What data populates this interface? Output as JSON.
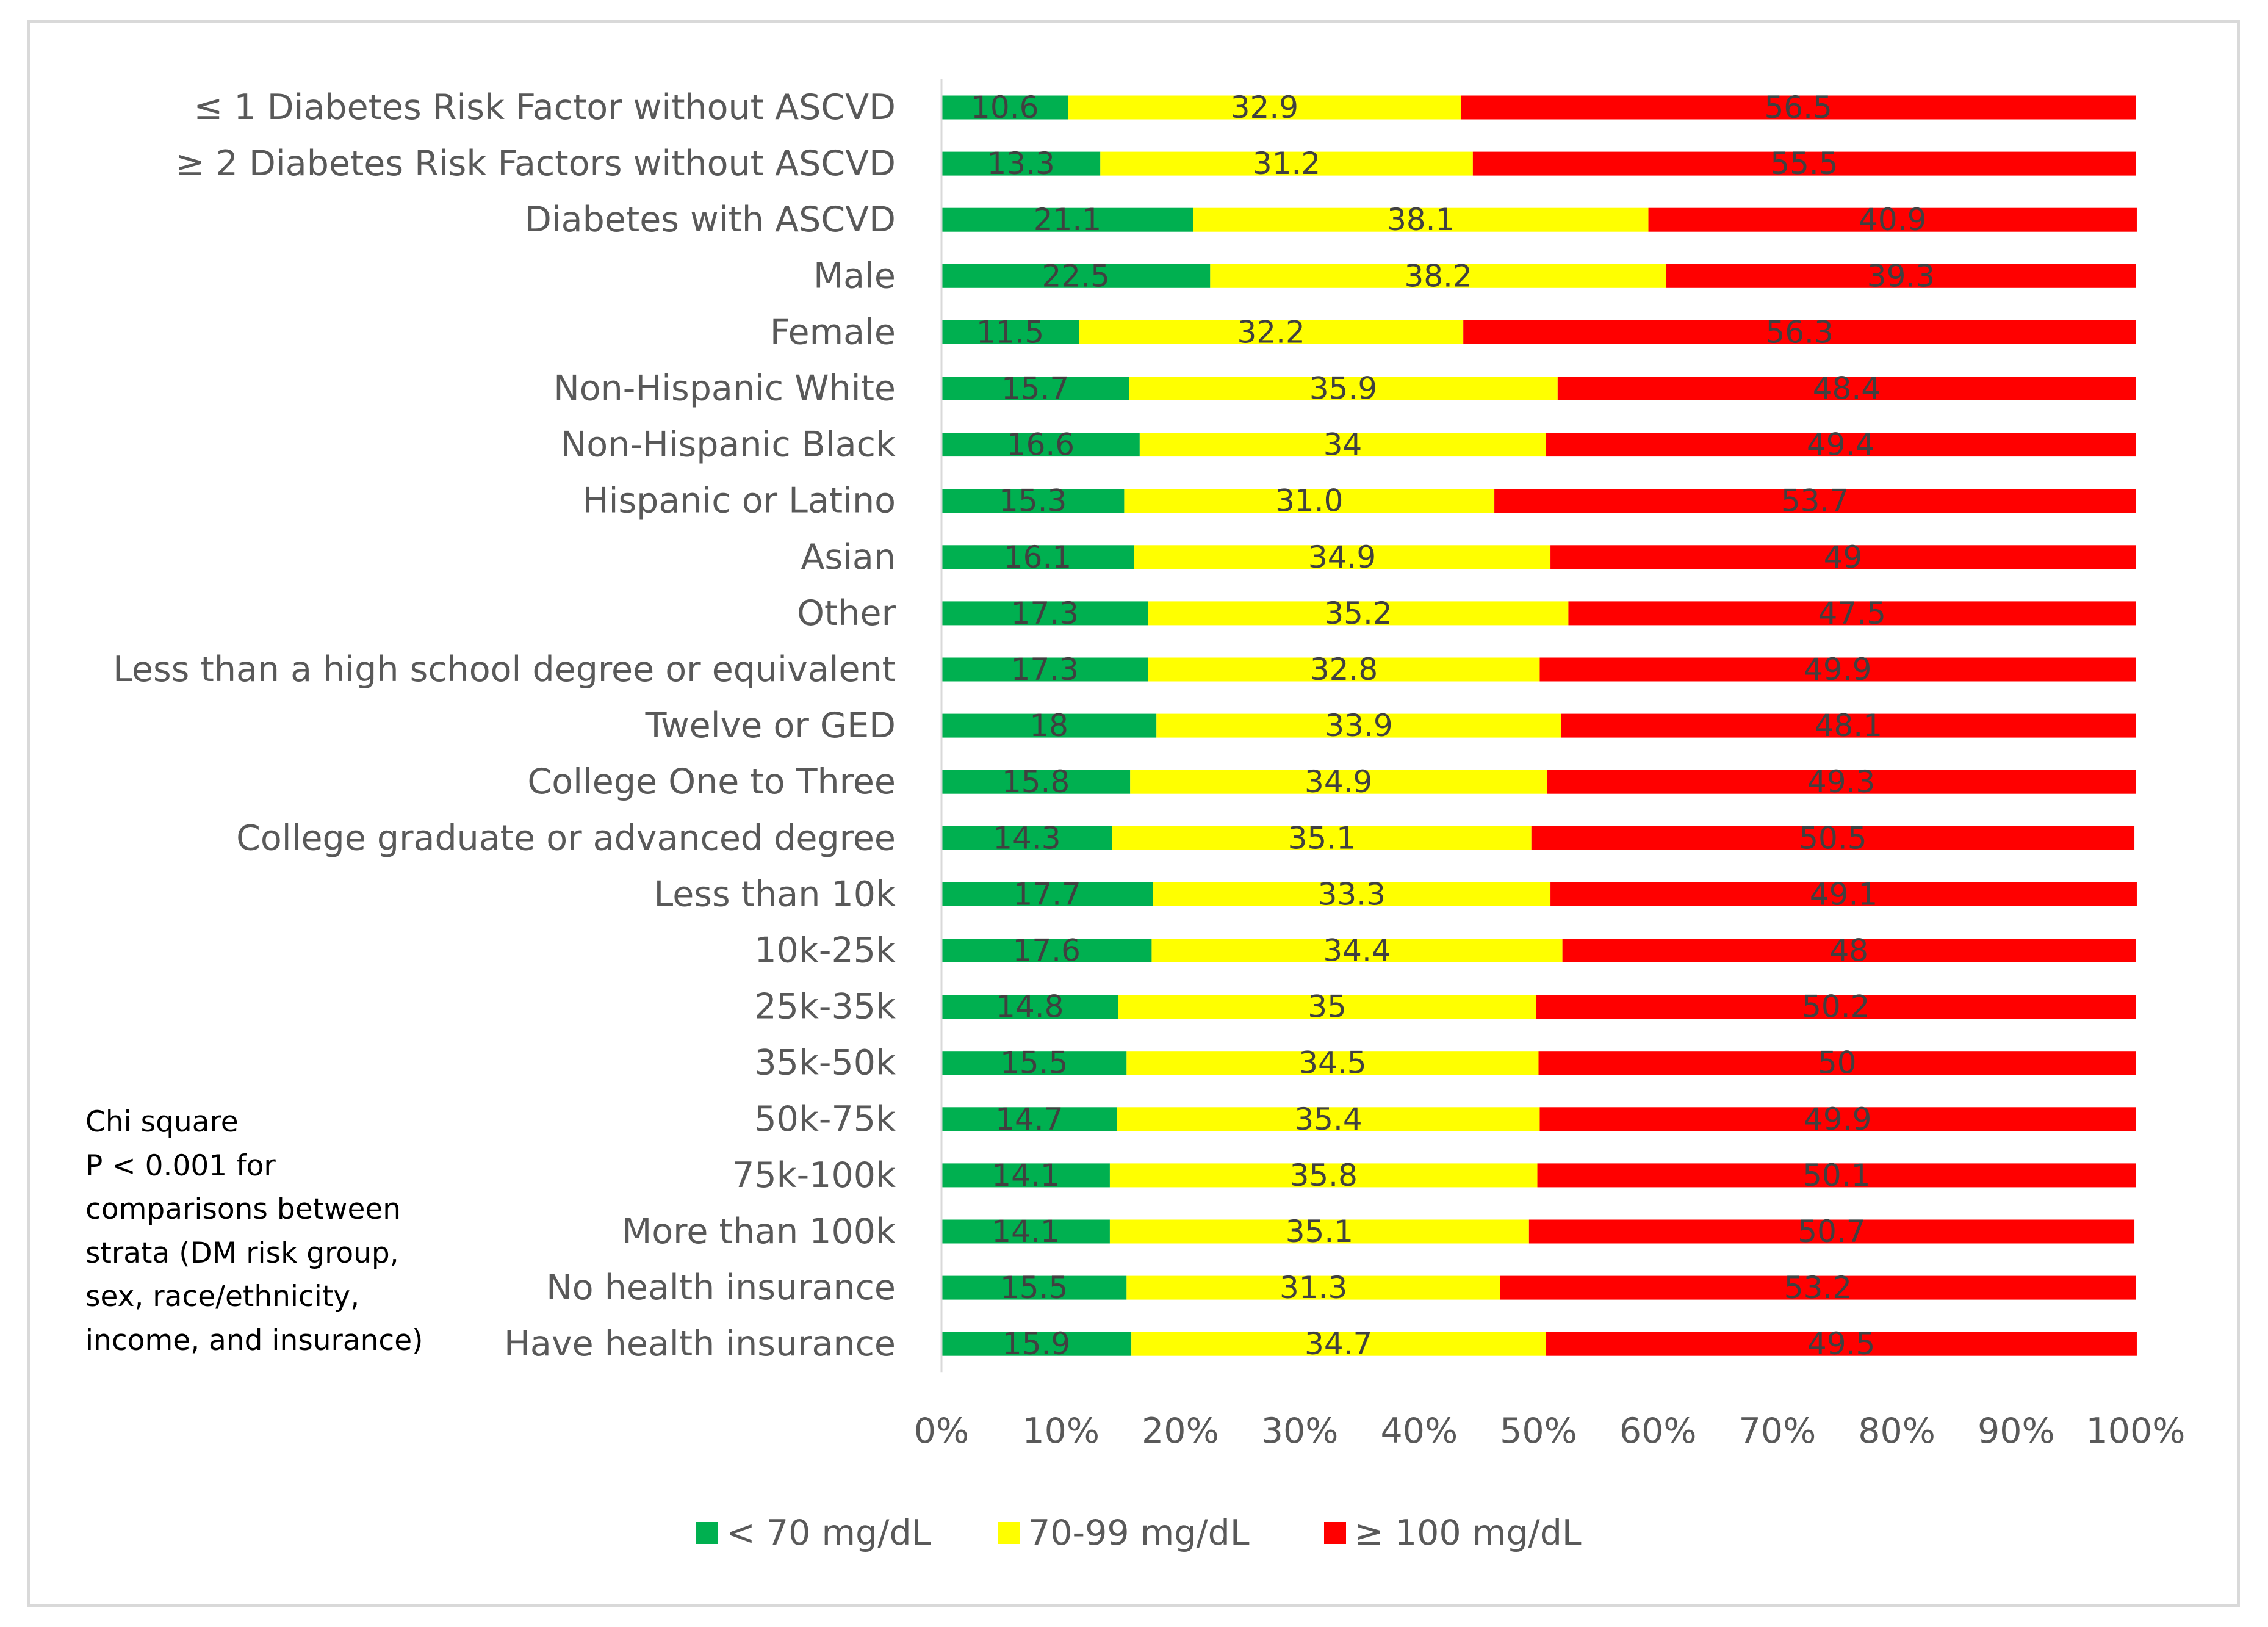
{
  "chart_data": {
    "type": "bar",
    "orientation": "horizontal",
    "stacked": "percent",
    "categories": [
      "≤ 1 Diabetes Risk Factor without ASCVD",
      "≥ 2 Diabetes Risk Factors without ASCVD",
      "Diabetes with ASCVD",
      "Male",
      "Female",
      "Non-Hispanic White",
      "Non-Hispanic Black",
      "Hispanic or Latino",
      "Asian",
      "Other",
      "Less than a high school degree or equivalent",
      "Twelve or GED",
      "College One to Three",
      "College graduate or advanced degree",
      "Less than 10k",
      "10k-25k",
      "25k-35k",
      "35k-50k",
      "50k-75k",
      "75k-100k",
      "More than 100k",
      "No health insurance",
      "Have health insurance"
    ],
    "series": [
      {
        "name": "< 70 mg/dL",
        "color": "#00b050",
        "values": [
          10.6,
          13.3,
          21.1,
          22.5,
          11.5,
          15.7,
          16.6,
          15.3,
          16.1,
          17.3,
          17.3,
          18,
          15.8,
          14.3,
          17.7,
          17.6,
          14.8,
          15.5,
          14.7,
          14.1,
          14.1,
          15.5,
          15.9
        ],
        "labels": [
          "10.6",
          "13.3",
          "21.1",
          "22.5",
          "11.5",
          "15.7",
          "16.6",
          "15.3",
          "16.1",
          "17.3",
          "17.3",
          "18",
          "15.8",
          "14.3",
          "17.7",
          "17.6",
          "14.8",
          "15.5",
          "14.7",
          "14.1",
          "14.1",
          "15.5",
          "15.9"
        ]
      },
      {
        "name": "70-99 mg/dL",
        "color": "#ffff00",
        "values": [
          32.9,
          31.2,
          38.1,
          38.2,
          32.2,
          35.9,
          34,
          31.0,
          34.9,
          35.2,
          32.8,
          33.9,
          34.9,
          35.1,
          33.3,
          34.4,
          35,
          34.5,
          35.4,
          35.8,
          35.1,
          31.3,
          34.7
        ],
        "labels": [
          "32.9",
          "31.2",
          "38.1",
          "38.2",
          "32.2",
          "35.9",
          "34",
          "31.0",
          "34.9",
          "35.2",
          "32.8",
          "33.9",
          "34.9",
          "35.1",
          "33.3",
          "34.4",
          "35",
          "34.5",
          "35.4",
          "35.8",
          "35.1",
          "31.3",
          "34.7"
        ]
      },
      {
        "name": "≥ 100 mg/dL",
        "color": "#ff0000",
        "values": [
          56.5,
          55.5,
          40.9,
          39.3,
          56.3,
          48.4,
          49.4,
          53.7,
          49,
          47.5,
          49.9,
          48.1,
          49.3,
          50.5,
          49.1,
          48,
          50.2,
          50,
          49.9,
          50.1,
          50.7,
          53.2,
          49.5
        ],
        "labels": [
          "56.5",
          "55.5",
          "40.9",
          "39.3",
          "56.3",
          "48.4",
          "49.4",
          "53.7",
          "49",
          "47.5",
          "49.9",
          "48.1",
          "49.3",
          "50.5",
          "49.1",
          "48",
          "50.2",
          "50",
          "49.9",
          "50.1",
          "50.7",
          "53.2",
          "49.5"
        ]
      }
    ],
    "xlim": [
      0,
      100
    ],
    "x_ticks": [
      "0%",
      "10%",
      "20%",
      "30%",
      "40%",
      "50%",
      "60%",
      "70%",
      "80%",
      "90%",
      "100%"
    ],
    "grid": false,
    "legend_position": "bottom",
    "title": "",
    "xlabel": "",
    "ylabel": ""
  },
  "annotation": {
    "lines": [
      "Chi square",
      "P < 0.001 for",
      "comparisons between",
      "strata (DM risk group,",
      "sex, race/ethnicity,",
      "income, and insurance)"
    ]
  },
  "colors": {
    "axis_text": "#595959",
    "data_label": "#404040",
    "axis_line": "#d9d9d9"
  }
}
